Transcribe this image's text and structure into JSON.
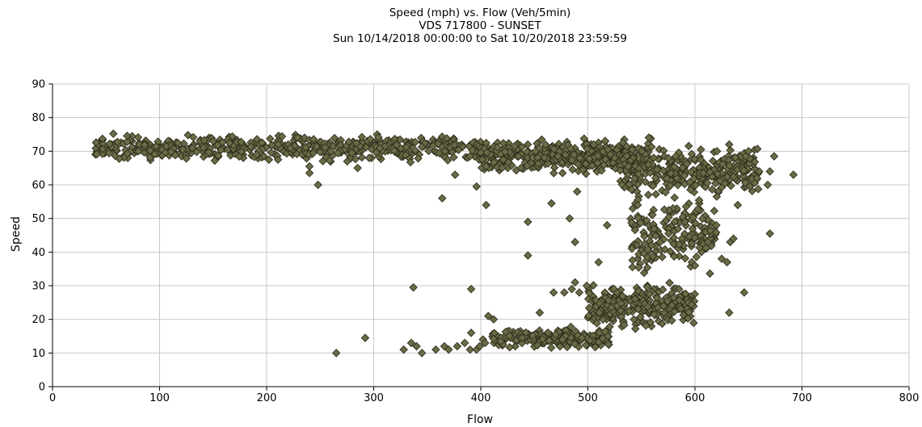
{
  "chart_data": {
    "type": "scatter",
    "title": "Speed (mph) vs. Flow (Veh/5min)",
    "subtitle": "VDS 717800 - SUNSET",
    "date_range": "Sun 10/14/2018 00:00:00 to Sat 10/20/2018 23:59:59",
    "xlabel": "Flow",
    "ylabel": "Speed",
    "xlim": [
      0,
      800
    ],
    "ylim": [
      0,
      90
    ],
    "xticks": [
      0,
      100,
      200,
      300,
      400,
      500,
      600,
      700,
      800
    ],
    "yticks": [
      0,
      10,
      20,
      30,
      40,
      50,
      60,
      70,
      80,
      90
    ],
    "grid": true,
    "marker": "diamond",
    "marker_color": "#6b6b48",
    "marker_edge_color": "#2e2e1c",
    "clusters": [
      {
        "flow": [
          40,
          400
        ],
        "speed": [
          66,
          76
        ],
        "count": 520
      },
      {
        "flow": [
          400,
          560
        ],
        "speed": [
          62,
          75
        ],
        "count": 460
      },
      {
        "flow": [
          530,
          660
        ],
        "speed": [
          55,
          72
        ],
        "count": 300
      },
      {
        "flow": [
          540,
          620
        ],
        "speed": [
          30,
          60
        ],
        "count": 180
      },
      {
        "flow": [
          410,
          520
        ],
        "speed": [
          11,
          18
        ],
        "count": 200
      },
      {
        "flow": [
          500,
          600
        ],
        "speed": [
          15,
          33
        ],
        "count": 260
      }
    ],
    "points": [
      [
        265,
        10
      ],
      [
        292,
        14.5
      ],
      [
        328,
        11
      ],
      [
        335,
        13
      ],
      [
        340,
        12
      ],
      [
        345,
        10
      ],
      [
        337,
        29.5
      ],
      [
        358,
        11
      ],
      [
        366,
        12
      ],
      [
        370,
        11
      ],
      [
        378,
        12
      ],
      [
        385,
        13
      ],
      [
        390,
        11
      ],
      [
        391,
        16
      ],
      [
        391,
        29
      ],
      [
        396,
        11
      ],
      [
        399,
        12
      ],
      [
        402,
        14
      ],
      [
        404,
        13
      ],
      [
        407,
        21
      ],
      [
        412,
        20
      ],
      [
        364,
        56
      ],
      [
        376,
        63
      ],
      [
        396,
        59.5
      ],
      [
        405,
        54
      ],
      [
        405,
        65.5
      ],
      [
        444,
        49
      ],
      [
        444,
        39
      ],
      [
        466,
        54.5
      ],
      [
        483,
        50
      ],
      [
        488,
        43
      ],
      [
        490,
        58
      ],
      [
        488,
        31
      ],
      [
        468,
        28
      ],
      [
        455,
        22
      ],
      [
        478,
        28
      ],
      [
        485,
        29
      ],
      [
        492,
        28
      ],
      [
        499,
        30
      ],
      [
        510,
        37
      ],
      [
        518,
        48
      ],
      [
        240,
        63.5
      ],
      [
        240,
        65.5
      ],
      [
        248,
        60
      ],
      [
        285,
        65
      ],
      [
        600,
        36
      ],
      [
        612,
        43
      ],
      [
        620,
        48
      ],
      [
        625,
        38
      ],
      [
        630,
        37
      ],
      [
        633,
        43
      ],
      [
        636,
        44
      ],
      [
        632,
        22
      ],
      [
        640,
        54
      ],
      [
        646,
        28
      ],
      [
        632,
        72
      ],
      [
        650,
        70
      ],
      [
        660,
        64
      ],
      [
        670,
        64
      ],
      [
        674,
        68.5
      ],
      [
        670,
        45.5
      ],
      [
        692,
        63
      ],
      [
        668,
        60
      ],
      [
        658,
        62
      ]
    ]
  }
}
